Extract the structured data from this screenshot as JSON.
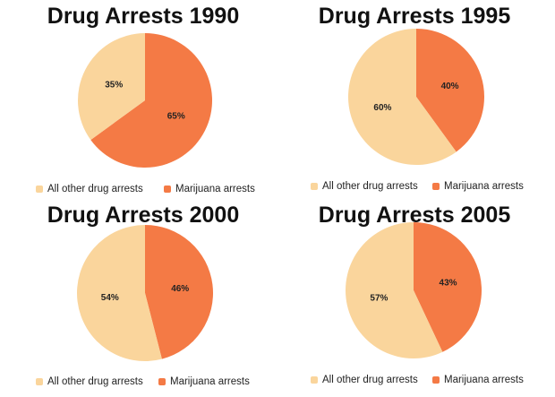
{
  "colors": {
    "other": "#FAD59C",
    "marijuana": "#F47A45"
  },
  "chart_data": [
    {
      "type": "pie",
      "title": "Drug Arrests 1990",
      "categories": [
        "All other drug arrests",
        "Marijuana arrests"
      ],
      "values": [
        35,
        65
      ],
      "labels": [
        "35%",
        "65%"
      ],
      "legend": "bottom"
    },
    {
      "type": "pie",
      "title": "Drug Arrests 1995",
      "categories": [
        "All other drug arrests",
        "Marijuana arrests"
      ],
      "values": [
        60,
        40
      ],
      "labels": [
        "60%",
        "40%"
      ],
      "legend": "bottom"
    },
    {
      "type": "pie",
      "title": "Drug Arrests 2000",
      "categories": [
        "All other drug arrests",
        "Marijuana arrests"
      ],
      "values": [
        54,
        46
      ],
      "labels": [
        "54%",
        "46%"
      ],
      "legend": "bottom"
    },
    {
      "type": "pie",
      "title": "Drug Arrests 2005",
      "categories": [
        "All other drug arrests",
        "Marijuana arrests"
      ],
      "values": [
        57,
        43
      ],
      "labels": [
        "57%",
        "43%"
      ],
      "legend": "bottom"
    }
  ]
}
